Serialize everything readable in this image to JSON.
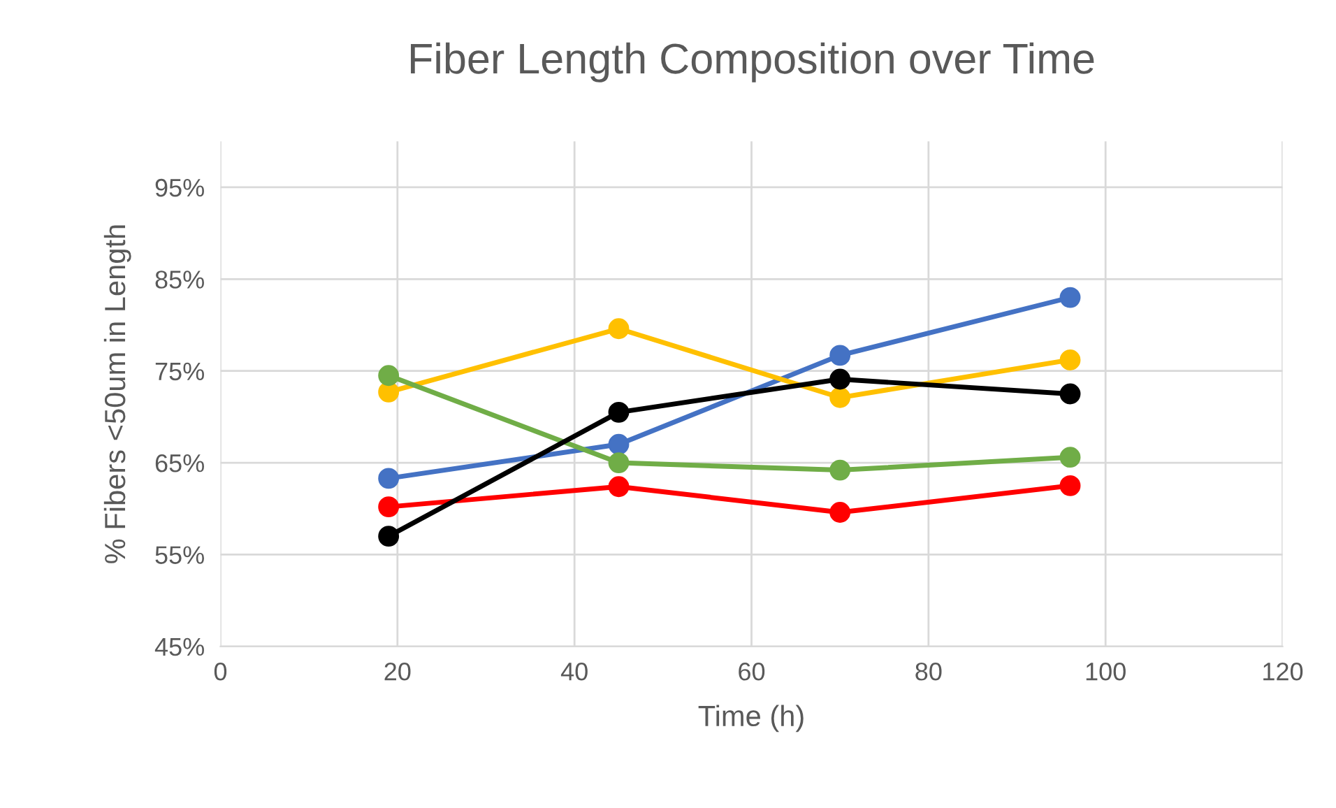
{
  "chart_data": {
    "type": "line",
    "title": "Fiber Length Composition over Time",
    "xlabel": "Time (h)",
    "ylabel": "% Fibers <50um in Length",
    "x": [
      19,
      45,
      70,
      96
    ],
    "series": [
      {
        "color": "#4472c4",
        "values": [
          63.3,
          67,
          76.7,
          83
        ]
      },
      {
        "color": "#ffc000",
        "values": [
          72.7,
          79.6,
          72.1,
          76.2
        ]
      },
      {
        "color": "#70ad47",
        "values": [
          74.5,
          65,
          64.2,
          65.6
        ]
      },
      {
        "color": "#ff0000",
        "values": [
          60.2,
          62.4,
          59.6,
          62.5
        ]
      },
      {
        "color": "#000000",
        "values": [
          57,
          70.5,
          74.1,
          72.5
        ]
      }
    ],
    "xlim": [
      0,
      120
    ],
    "xticks": [
      0,
      20,
      40,
      60,
      80,
      100,
      120
    ],
    "ylim": [
      45,
      100
    ],
    "yticks": [
      {
        "value": 45,
        "label": "45%"
      },
      {
        "value": 55,
        "label": "55%"
      },
      {
        "value": 65,
        "label": "65%"
      },
      {
        "value": 75,
        "label": "75%"
      },
      {
        "value": 85,
        "label": "85%"
      },
      {
        "value": 95,
        "label": "95%"
      }
    ],
    "grid": true,
    "marker": "circle",
    "line_style": "solid",
    "legend": false
  }
}
